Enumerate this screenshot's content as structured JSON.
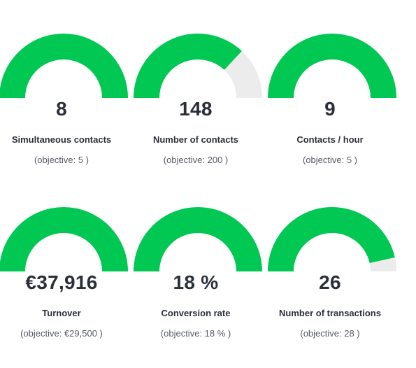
{
  "colors": {
    "gauge_fill": "#00c853",
    "gauge_track": "#ececec"
  },
  "kpis": [
    {
      "name": "simultaneous-contacts",
      "value": "8",
      "label": "Simultaneous contacts",
      "objective_text": "(objective: 5 )",
      "progress": 1.0
    },
    {
      "name": "number-of-contacts",
      "value": "148",
      "label": "Number of contacts",
      "objective_text": "(objective: 200 )",
      "progress": 0.74
    },
    {
      "name": "contacts-per-hour",
      "value": "9",
      "label": "Contacts / hour",
      "objective_text": "(objective: 5 )",
      "progress": 1.0
    },
    {
      "name": "turnover",
      "value": "€37,916",
      "label": "Turnover",
      "objective_text": "(objective: €29,500 )",
      "progress": 1.0
    },
    {
      "name": "conversion-rate",
      "value": "18 %",
      "label": "Conversion rate",
      "objective_text": "(objective: 18 % )",
      "progress": 1.0
    },
    {
      "name": "number-of-transactions",
      "value": "26",
      "label": "Number of transactions",
      "objective_text": "(objective: 28 )",
      "progress": 0.93
    }
  ]
}
